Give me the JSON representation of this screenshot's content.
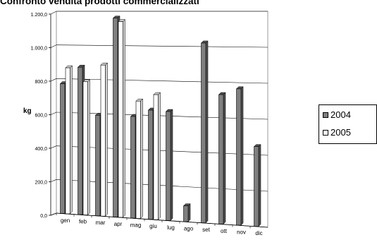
{
  "chart_data": {
    "type": "bar",
    "title": "Confronto vendita prodotti commercializzati",
    "ylabel": "kg",
    "xlabel": "",
    "categories": [
      "gen",
      "feb",
      "mar",
      "apr",
      "mag",
      "giu",
      "lug",
      "ago",
      "set",
      "ott",
      "nov",
      "dic"
    ],
    "series": [
      {
        "name": "2004",
        "values": [
          770,
          870,
          590,
          1160,
          590,
          630,
          625,
          90,
          1020,
          730,
          765,
          445
        ]
      },
      {
        "name": "2005",
        "values": [
          865,
          785,
          885,
          1140,
          680,
          720,
          null,
          null,
          null,
          null,
          null,
          null
        ]
      }
    ],
    "ylim": [
      0,
      1200
    ],
    "yticks": [
      "0,0",
      "200,0",
      "400,0",
      "600,0",
      "800,0",
      "1.000,0",
      "1.200,0"
    ],
    "grid": true,
    "legend_position": "right",
    "colors": {
      "2004": "#7f7f7f",
      "2005": "#ffffff"
    }
  }
}
